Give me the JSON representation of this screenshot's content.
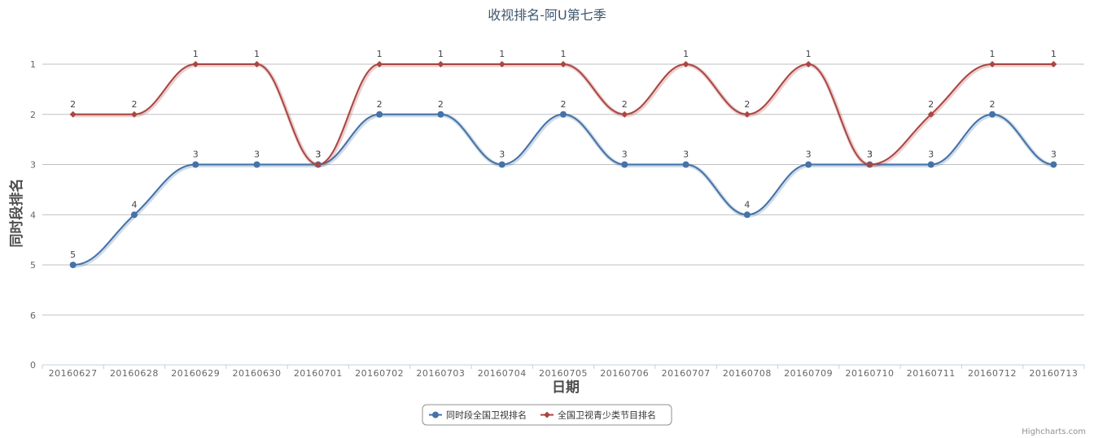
{
  "chart_data": {
    "type": "line",
    "title": "收视排名-阿U第七季",
    "xlabel": "日期",
    "ylabel": "同时段排名",
    "categories": [
      "20160627",
      "20160628",
      "20160629",
      "20160630",
      "20160701",
      "20160702",
      "20160703",
      "20160704",
      "20160705",
      "20160706",
      "20160707",
      "20160708",
      "20160709",
      "20160710",
      "20160711",
      "20160712",
      "20160713"
    ],
    "y_tick_labels": [
      "1",
      "2",
      "3",
      "4",
      "5",
      "6",
      "0"
    ],
    "ylim": [
      0.5,
      7
    ],
    "y_reversed": true,
    "grid": true,
    "legend_position": "bottom-center",
    "series": [
      {
        "name": "同时段全国卫视排名",
        "color": "#4572A7",
        "marker": "circle",
        "values": [
          5,
          4,
          3,
          3,
          3,
          2,
          2,
          3,
          2,
          3,
          3,
          4,
          3,
          3,
          3,
          2,
          3
        ]
      },
      {
        "name": "全国卫视青少类节目排名",
        "color": "#AA4643",
        "marker": "diamond",
        "values": [
          2,
          2,
          1,
          1,
          3,
          1,
          1,
          1,
          1,
          2,
          1,
          2,
          1,
          3,
          2,
          1,
          1
        ]
      }
    ],
    "credits": "Highcharts.com"
  }
}
